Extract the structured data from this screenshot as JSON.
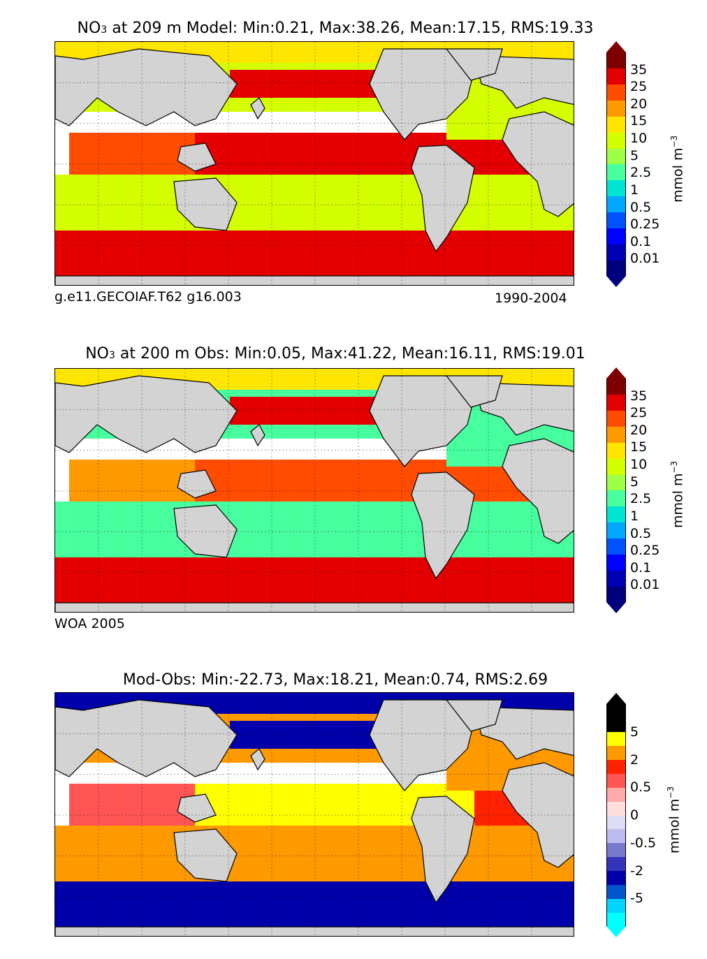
{
  "chart_data": [
    {
      "type": "heatmap",
      "panel": "model",
      "title_prefix": "NO",
      "title_sub": "3",
      "title_rest": " at 209 m Model: Min:0.21, Max:38.26, Mean:17.15, RMS:19.33",
      "stats": {
        "min": 0.21,
        "max": 38.26,
        "mean": 17.15,
        "rms": 19.33
      },
      "note_left": "g.e11.GECOIAF.T62 g16.003",
      "note_right": "1990-2004",
      "colorbar_label": "mmol m",
      "colorbar_label_sup": "−3",
      "colorbar_ticks": [
        "0.01",
        "0.1",
        "0.25",
        "0.5",
        "1",
        "2.5",
        "5",
        "10",
        "15",
        "20",
        "25",
        "35"
      ],
      "colorbar_colors": [
        "#00007f",
        "#0000b4",
        "#0000ff",
        "#0052ff",
        "#00a8ff",
        "#00e4d4",
        "#47ff9f",
        "#9fff47",
        "#d4ff00",
        "#ffe600",
        "#ff9900",
        "#ff4c00",
        "#e40000",
        "#7f0000"
      ],
      "regions": {
        "arctic": "#ffe600",
        "north_pacific": "#d4ff00",
        "subarctic_pacific": "#e40000",
        "equatorial": "#e40000",
        "south_pacific": "#d4ff00",
        "southern_ocean": "#e40000",
        "north_atlantic": "#d4ff00",
        "tropical_atlantic": "#e40000",
        "indian": "#ff4c00"
      }
    },
    {
      "type": "heatmap",
      "panel": "obs",
      "title_prefix": "NO",
      "title_sub": "3",
      "title_rest": " at 200 m Obs: Min:0.05, Max:41.22, Mean:16.11, RMS:19.01",
      "stats": {
        "min": 0.05,
        "max": 41.22,
        "mean": 16.11,
        "rms": 19.01
      },
      "note_left": "WOA 2005",
      "colorbar_label": "mmol m",
      "colorbar_label_sup": "−3",
      "colorbar_ticks": [
        "0.01",
        "0.1",
        "0.25",
        "0.5",
        "1",
        "2.5",
        "5",
        "10",
        "15",
        "20",
        "25",
        "35"
      ],
      "colorbar_colors": [
        "#00007f",
        "#0000b4",
        "#0000ff",
        "#0052ff",
        "#00a8ff",
        "#00e4d4",
        "#47ff9f",
        "#9fff47",
        "#d4ff00",
        "#ffe600",
        "#ff9900",
        "#ff4c00",
        "#e40000",
        "#7f0000"
      ],
      "regions": {
        "arctic": "#ffe600",
        "north_pacific": "#47ff9f",
        "subarctic_pacific": "#e40000",
        "equatorial": "#ff4c00",
        "south_pacific": "#47ff9f",
        "southern_ocean": "#e40000",
        "north_atlantic": "#47ff9f",
        "tropical_atlantic": "#ff4c00",
        "indian": "#ff9900"
      }
    },
    {
      "type": "heatmap",
      "panel": "diff",
      "title_rest": "Mod-Obs: Min:-22.73, Max:18.21, Mean:0.74, RMS:2.69",
      "stats": {
        "min": -22.73,
        "max": 18.21,
        "mean": 0.74,
        "rms": 2.69
      },
      "colorbar_label": "mmol m",
      "colorbar_label_sup": "−3",
      "colorbar_ticks": [
        "-5",
        "-2",
        "-0.5",
        "0",
        "0.5",
        "2",
        "5"
      ],
      "colorbar_colors": [
        "#00ffff",
        "#00d4ff",
        "#0055cc",
        "#0000aa",
        "#3333bb",
        "#7777cc",
        "#bbbbee",
        "#ddddf5",
        "#ffdddd",
        "#ffaaaa",
        "#ff5555",
        "#ff2200",
        "#ff9900",
        "#ffff00",
        "#000000",
        "#000000"
      ],
      "regions": {
        "arctic": "#0000aa",
        "north_pacific": "#ff9900",
        "subarctic_pacific": "#0000aa",
        "equatorial": "#ffff00",
        "south_pacific": "#ff9900",
        "southern_ocean": "#0000aa",
        "north_atlantic": "#ff9900",
        "tropical_atlantic": "#ff2200",
        "indian": "#ff5555"
      }
    }
  ]
}
